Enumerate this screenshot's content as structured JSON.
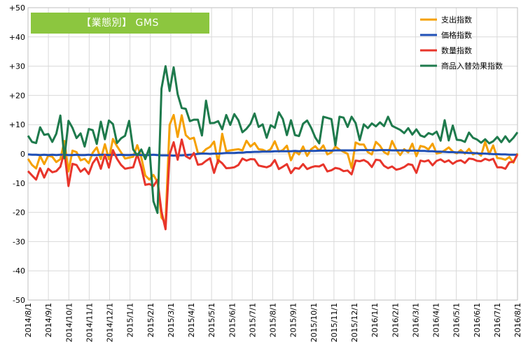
{
  "chart_data": {
    "type": "line",
    "title": "【業態別】 GMS",
    "ylim": [
      -50,
      50
    ],
    "y_ticks": [
      50,
      40,
      30,
      20,
      10,
      0,
      -10,
      -20,
      -30,
      -40,
      -50
    ],
    "y_tick_labels": [
      "+50",
      "+40",
      "+30",
      "+20",
      "+10",
      "0",
      "-10",
      "-20",
      "-30",
      "-40",
      "-50"
    ],
    "x_tick_labels": [
      "2014/8/1",
      "2014/9/1",
      "2014/10/1",
      "2014/11/1",
      "2014/12/1",
      "2015/1/1",
      "2015/2/1",
      "2015/3/1",
      "2015/4/1",
      "2015/5/1",
      "2015/6/1",
      "2015/7/1",
      "2015/8/1",
      "2015/9/1",
      "2015/10/1",
      "2015/11/1",
      "2015/12/1",
      "2016/1/1",
      "2016/2/1",
      "2016/3/1",
      "2016/4/1",
      "2016/5/1",
      "2016/6/1",
      "2016/7/1",
      "2016/8/1"
    ],
    "grid": true,
    "legend_position": "top-right",
    "series": [
      {
        "name": "支出指数",
        "color": "#f5a000",
        "values": [
          -1.7,
          -3.8,
          -5.0,
          -0.7,
          -3.5,
          -0.6,
          -1.0,
          -2.8,
          -1.8,
          4.4,
          -6.0,
          1.1,
          0.6,
          -2.2,
          -1.7,
          -3.2,
          0.4,
          2.2,
          -1.8,
          3.3,
          -1.8,
          5.1,
          2.6,
          0.5,
          -1.6,
          -1.3,
          -1.0,
          3.0,
          -1.3,
          -7.4,
          -8.8,
          -7.2,
          -9.6,
          -21.8,
          -23.6,
          9.9,
          13.3,
          5.8,
          13.2,
          6.4,
          5.1,
          5.5,
          0.3,
          0.2,
          1.6,
          2.4,
          4.2,
          -3.2,
          6.9,
          0.9,
          1.2,
          1.4,
          1.6,
          1.2,
          4.5,
          2.5,
          3.7,
          1.6,
          1.4,
          0.8,
          1.6,
          4.3,
          0.8,
          1.3,
          2.8,
          -2.2,
          0.9,
          -0.2,
          2.5,
          -0.7,
          1.6,
          2.6,
          1.1,
          2.9,
          -0.2,
          0.5,
          2.5,
          1.4,
          0.7,
          0.0,
          -4.8,
          3.9,
          3.2,
          3.2,
          0.6,
          -0.2,
          4.1,
          2.8,
          0.6,
          -0.2,
          4.4,
          1.5,
          -0.4,
          1.6,
          0.5,
          3.5,
          -0.8,
          2.7,
          2.4,
          1.5,
          3.5,
          0.1,
          0.4,
          1.2,
          2.2,
          0.8,
          0.2,
          1.3,
          0.1,
          1.7,
          -0.2,
          0.4,
          -0.6,
          4.1,
          -0.1,
          2.9,
          -1.4,
          -1.6,
          -2.0,
          -1.1,
          -3.0,
          0.2
        ],
        "values_note": ""
      },
      {
        "name": "価格指数",
        "color": "#1f4fb5",
        "values": [
          -0.2,
          -0.3,
          -0.3,
          -0.4,
          -0.3,
          -0.4,
          -0.3,
          -0.4,
          -0.3,
          -0.3,
          -0.4,
          -0.4,
          -0.3,
          -0.4,
          -0.4,
          -0.3,
          -0.4,
          -0.4,
          -0.3,
          -0.3,
          -0.4,
          -0.3,
          -0.4,
          -0.3,
          -0.4,
          -0.4,
          -0.3,
          -0.3,
          -0.4,
          -0.4,
          -0.4,
          -0.3,
          -0.4,
          -0.5,
          -0.5,
          -0.5,
          -0.6,
          -0.5,
          -0.5,
          -0.4,
          -0.3,
          -0.2,
          0.0,
          0.1,
          0.1,
          0.0,
          0.1,
          0.1,
          0.2,
          0.3,
          0.3,
          0.3,
          0.4,
          0.4,
          0.6,
          0.6,
          0.7,
          0.7,
          0.8,
          0.8,
          0.8,
          0.9,
          0.9,
          0.9,
          0.9,
          0.9,
          1.0,
          0.9,
          1.0,
          1.0,
          1.0,
          1.0,
          1.1,
          1.1,
          1.1,
          1.1,
          1.2,
          1.2,
          1.2,
          1.2,
          1.2,
          1.2,
          1.3,
          1.3,
          1.3,
          1.3,
          1.2,
          1.3,
          1.3,
          1.3,
          1.2,
          1.2,
          1.2,
          1.2,
          1.1,
          1.1,
          1.1,
          1.0,
          1.0,
          0.9,
          0.9,
          0.8,
          0.8,
          0.7,
          0.6,
          0.6,
          0.5,
          0.5,
          0.4,
          0.3,
          0.3,
          0.2,
          0.1,
          0.1,
          0.0,
          -0.1,
          -0.1,
          -0.2,
          -0.2,
          -0.3,
          -0.3,
          -0.3
        ],
        "values_note": ""
      },
      {
        "name": "数量指数",
        "color": "#e8352b",
        "values": [
          -5.9,
          -7.4,
          -8.8,
          -4.9,
          -8.1,
          -5.1,
          -6.3,
          -5.9,
          -4.4,
          0.6,
          -11.0,
          -3.4,
          -3.8,
          -6.1,
          -5.0,
          -6.9,
          -3.2,
          -1.3,
          -5.1,
          -0.3,
          -4.7,
          1.3,
          -1.7,
          -3.8,
          -5.1,
          -4.8,
          -4.6,
          -0.1,
          -4.7,
          -10.6,
          -10.3,
          -11.0,
          -8.9,
          -19.7,
          -25.8,
          -0.2,
          4.0,
          -2.0,
          4.9,
          -0.8,
          -1.6,
          0.3,
          -3.7,
          -3.5,
          -2.4,
          -1.5,
          -6.5,
          -2.1,
          -3.2,
          -4.9,
          -4.8,
          -4.6,
          -3.8,
          -1.6,
          -2.3,
          -1.8,
          -1.9,
          -4.0,
          -4.3,
          -4.6,
          -4.0,
          -2.1,
          -5.2,
          -4.4,
          -3.5,
          -6.6,
          -4.8,
          -5.1,
          -3.5,
          -5.2,
          -4.6,
          -4.2,
          -4.3,
          -3.6,
          -6.0,
          -5.6,
          -4.8,
          -5.1,
          -5.9,
          -5.7,
          -7.0,
          -2.3,
          -2.5,
          -2.1,
          -2.9,
          -4.5,
          -2.0,
          -2.2,
          -4.1,
          -4.9,
          -4.3,
          -5.4,
          -5.1,
          -4.5,
          -3.5,
          -3.8,
          -6.5,
          -2.3,
          -2.6,
          -2.2,
          -3.9,
          -2.4,
          -1.9,
          -2.8,
          -2.2,
          -3.4,
          -2.5,
          -2.2,
          -3.1,
          -1.6,
          -1.8,
          -2.4,
          -2.5,
          -1.7,
          -2.2,
          -1.7,
          -4.6,
          -4.6,
          -5.1,
          -2.9,
          -2.7,
          -0.2
        ],
        "values_note": ""
      },
      {
        "name": "商品入替効果指数",
        "color": "#1e7a4c",
        "values": [
          6.2,
          4.1,
          3.7,
          9.1,
          6.5,
          6.8,
          4.1,
          6.9,
          13.1,
          -1.5,
          11.3,
          8.9,
          5.4,
          7.0,
          2.5,
          8.5,
          8.1,
          3.4,
          11.0,
          5.0,
          11.4,
          10.2,
          3.7,
          5.3,
          6.2,
          11.3,
          1.5,
          -0.5,
          1.5,
          -1.8,
          2.1,
          -16.2,
          -20.2,
          22.3,
          30.0,
          21.5,
          29.6,
          20.4,
          15.7,
          15.4,
          11.2,
          11.7,
          11.7,
          6.3,
          18.2,
          10.5,
          10.6,
          11.2,
          8.4,
          13.3,
          9.9,
          13.6,
          11.5,
          7.4,
          8.6,
          10.3,
          13.8,
          9.2,
          10.1,
          5.5,
          9.8,
          8.9,
          14.2,
          11.9,
          6.4,
          11.5,
          6.4,
          6.1,
          10.3,
          11.4,
          8.9,
          5.6,
          3.6,
          12.7,
          12.3,
          11.9,
          2.9,
          12.7,
          12.4,
          9.2,
          12.7,
          10.5,
          4.7,
          10.1,
          8.8,
          10.4,
          9.4,
          10.8,
          9.5,
          12.7,
          9.6,
          8.9,
          8.2,
          7.1,
          8.8,
          6.6,
          8.4,
          6.3,
          5.8,
          7.1,
          6.6,
          7.6,
          4.5,
          11.5,
          4.6,
          9.7,
          4.8,
          4.7,
          4.1,
          7.3,
          5.5,
          4.9,
          3.8,
          5.0,
          3.6,
          4.3,
          5.8,
          4.0,
          6.0,
          4.1,
          5.5,
          7.4
        ],
        "values_note": ""
      }
    ]
  }
}
